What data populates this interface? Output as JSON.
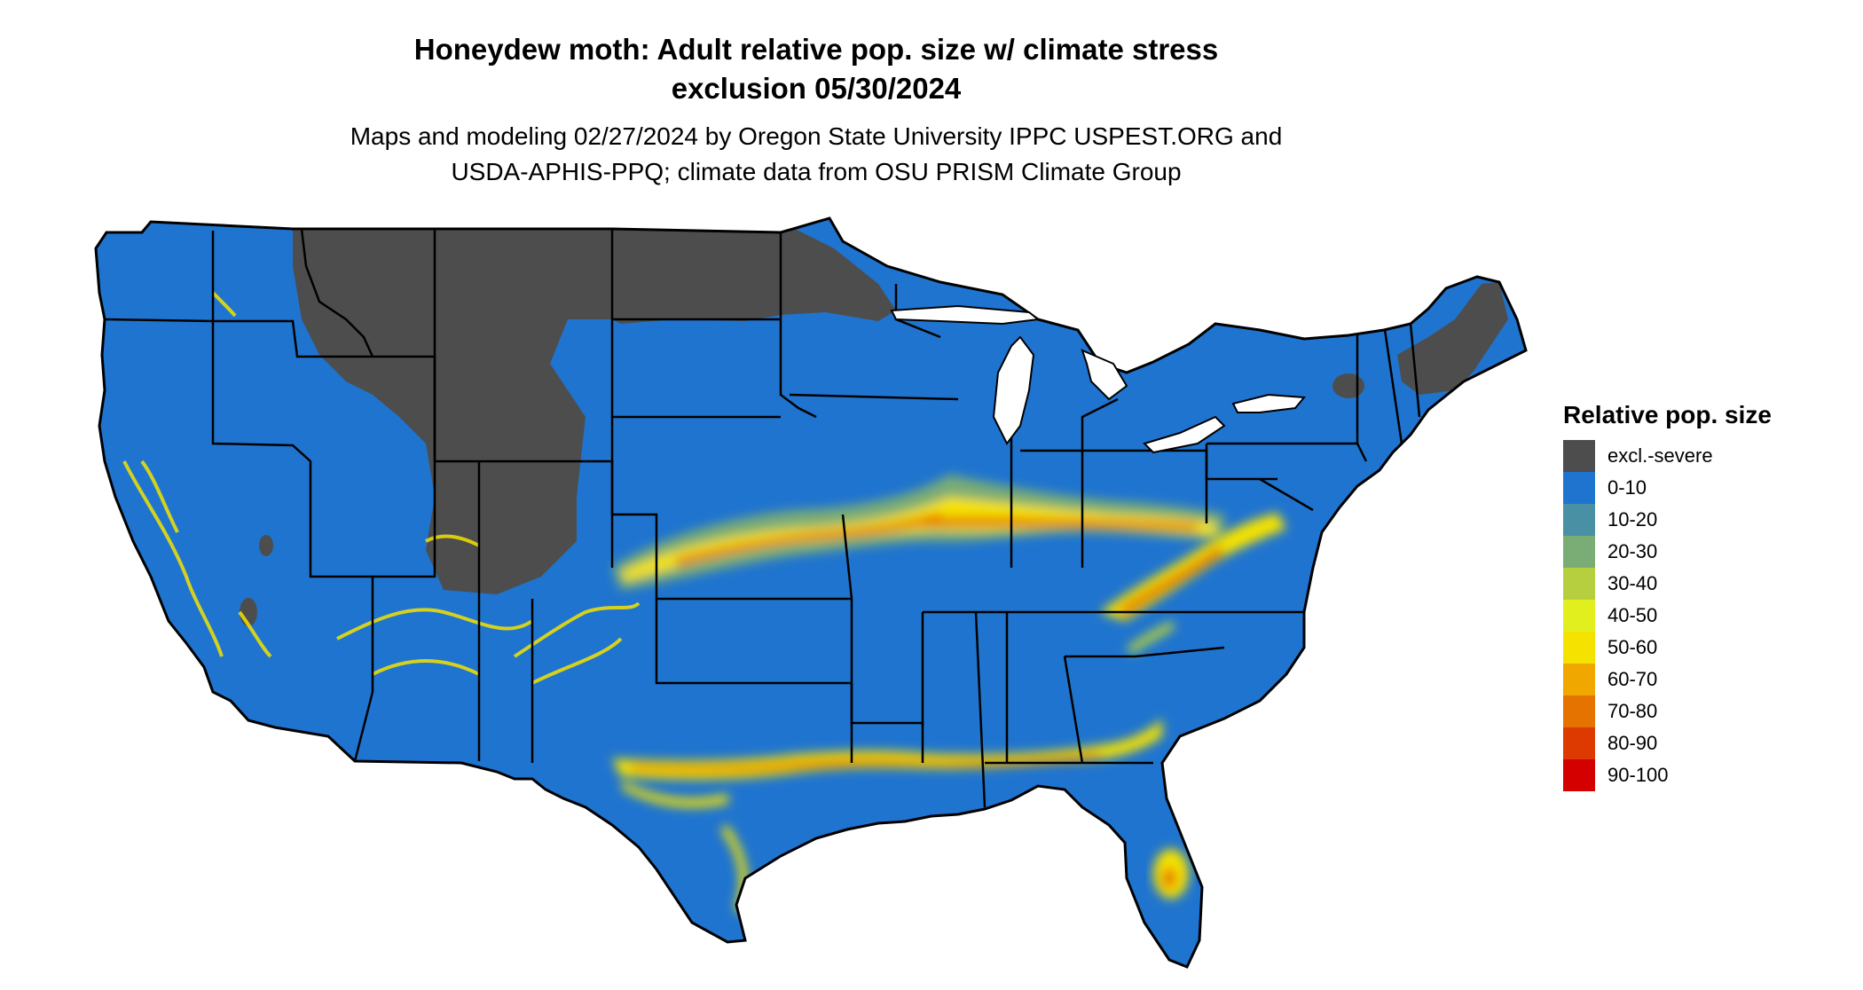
{
  "title": {
    "line1": "Honeydew moth: Adult relative pop. size w/ climate stress",
    "line2": "exclusion 05/30/2024"
  },
  "subtitle": {
    "line1": "Maps and modeling 02/27/2024 by Oregon State University IPPC USPEST.ORG and",
    "line2": "USDA-APHIS-PPQ; climate data from OSU PRISM Climate Group"
  },
  "legend": {
    "title": "Relative pop. size",
    "items": [
      {
        "label": "excl.-severe",
        "color": "#4d4d4d"
      },
      {
        "label": "0-10",
        "color": "#1f74cf"
      },
      {
        "label": "10-20",
        "color": "#4a90a4"
      },
      {
        "label": "20-30",
        "color": "#7aac76"
      },
      {
        "label": "30-40",
        "color": "#b5cf3f"
      },
      {
        "label": "40-50",
        "color": "#e2ef1e"
      },
      {
        "label": "50-60",
        "color": "#f5e200"
      },
      {
        "label": "60-70",
        "color": "#f0a800"
      },
      {
        "label": "70-80",
        "color": "#e57300"
      },
      {
        "label": "80-90",
        "color": "#dc3a00"
      },
      {
        "label": "90-100",
        "color": "#d40000"
      }
    ]
  },
  "map": {
    "region": "contiguous-us",
    "base_color": "#1f74cf",
    "excluded_color": "#4d4d4d",
    "border_color": "#000000"
  }
}
